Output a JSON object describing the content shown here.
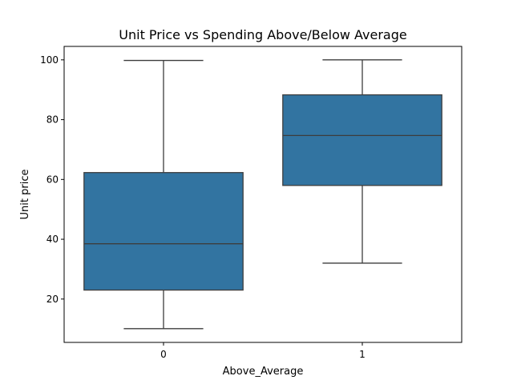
{
  "chart_data": {
    "type": "box",
    "title": "Unit Price vs Spending Above/Below Average",
    "xlabel": "Above_Average",
    "ylabel": "Unit price",
    "categories": [
      "0",
      "1"
    ],
    "boxes": [
      {
        "category": "0",
        "whisker_low": 10.1,
        "q1": 23.0,
        "median": 38.5,
        "q3": 62.3,
        "whisker_high": 99.8
      },
      {
        "category": "1",
        "whisker_low": 32.0,
        "q1": 58.0,
        "median": 74.7,
        "q3": 88.3,
        "whisker_high": 100.0
      }
    ],
    "ylim": [
      5.5,
      104.5
    ],
    "yticks": [
      20,
      40,
      60,
      80,
      100
    ],
    "grid": false,
    "box_color": "#3274a1",
    "line_color": "#3d3d3d"
  }
}
